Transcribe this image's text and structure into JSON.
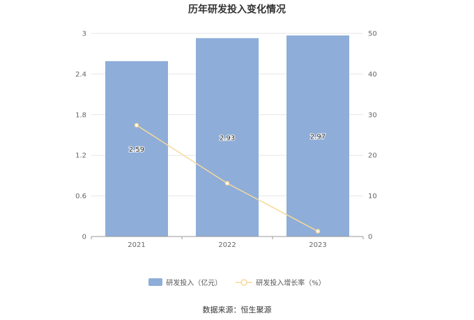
{
  "colors": {
    "bar": "#8eadd9",
    "line": "#f7d99a",
    "axis": "#999999",
    "grid": "#e6e6e6"
  },
  "chart_data": {
    "type": "bar",
    "title": "历年研发投入变化情况",
    "categories": [
      "2021",
      "2022",
      "2023"
    ],
    "series": [
      {
        "name": "研发投入（亿元）",
        "type": "bar",
        "axis": "left",
        "values": [
          2.59,
          2.93,
          2.97
        ],
        "labels": [
          "2.59",
          "2.93",
          "2.97"
        ]
      },
      {
        "name": "研发投入增长率（%）",
        "type": "line",
        "axis": "right",
        "values": [
          27.4,
          13.1,
          1.3
        ]
      }
    ],
    "y_left": {
      "range": [
        0,
        3
      ],
      "ticks": [
        "0",
        "0.6",
        "1.2",
        "1.8",
        "2.4",
        "3"
      ]
    },
    "y_right": {
      "range": [
        0,
        50
      ],
      "ticks": [
        "0",
        "10",
        "20",
        "30",
        "40",
        "50"
      ]
    },
    "grid": true,
    "legend_position": "bottom"
  },
  "source": "数据来源：恒生聚源"
}
